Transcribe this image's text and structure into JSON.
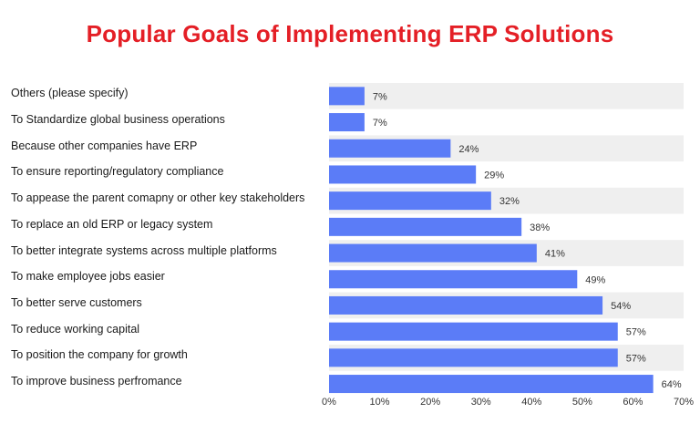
{
  "colors": {
    "title": "#e41f26",
    "bar": "#5b7cf7",
    "band": "#efefef",
    "text": "#1a1a1a"
  },
  "chart_data": {
    "type": "bar",
    "orientation": "horizontal",
    "title": "Popular Goals of Implementing ERP Solutions",
    "categories": [
      "Others (please specify)",
      "To Standardize global business operations",
      "Because other companies have ERP",
      "To ensure reporting/regulatory compliance",
      "To appease the parent comapny or other key stakeholders",
      "To replace an old ERP or legacy system",
      "To better integrate systems across multiple platforms",
      "To make employee jobs easier",
      "To better serve customers",
      "To reduce working capital",
      "To position the company for growth",
      "To improve business perfromance"
    ],
    "values": [
      7,
      7,
      24,
      29,
      32,
      38,
      41,
      49,
      54,
      57,
      57,
      64
    ],
    "value_labels": [
      "7%",
      "7%",
      "24%",
      "29%",
      "32%",
      "38%",
      "41%",
      "49%",
      "54%",
      "57%",
      "57%",
      "64%"
    ],
    "xlim": [
      0,
      70
    ],
    "xticks": [
      "0%",
      "10%",
      "20%",
      "30%",
      "40%",
      "50%",
      "60%",
      "70%"
    ],
    "alternating_row_bands": true,
    "grid": false,
    "legend": "none"
  }
}
